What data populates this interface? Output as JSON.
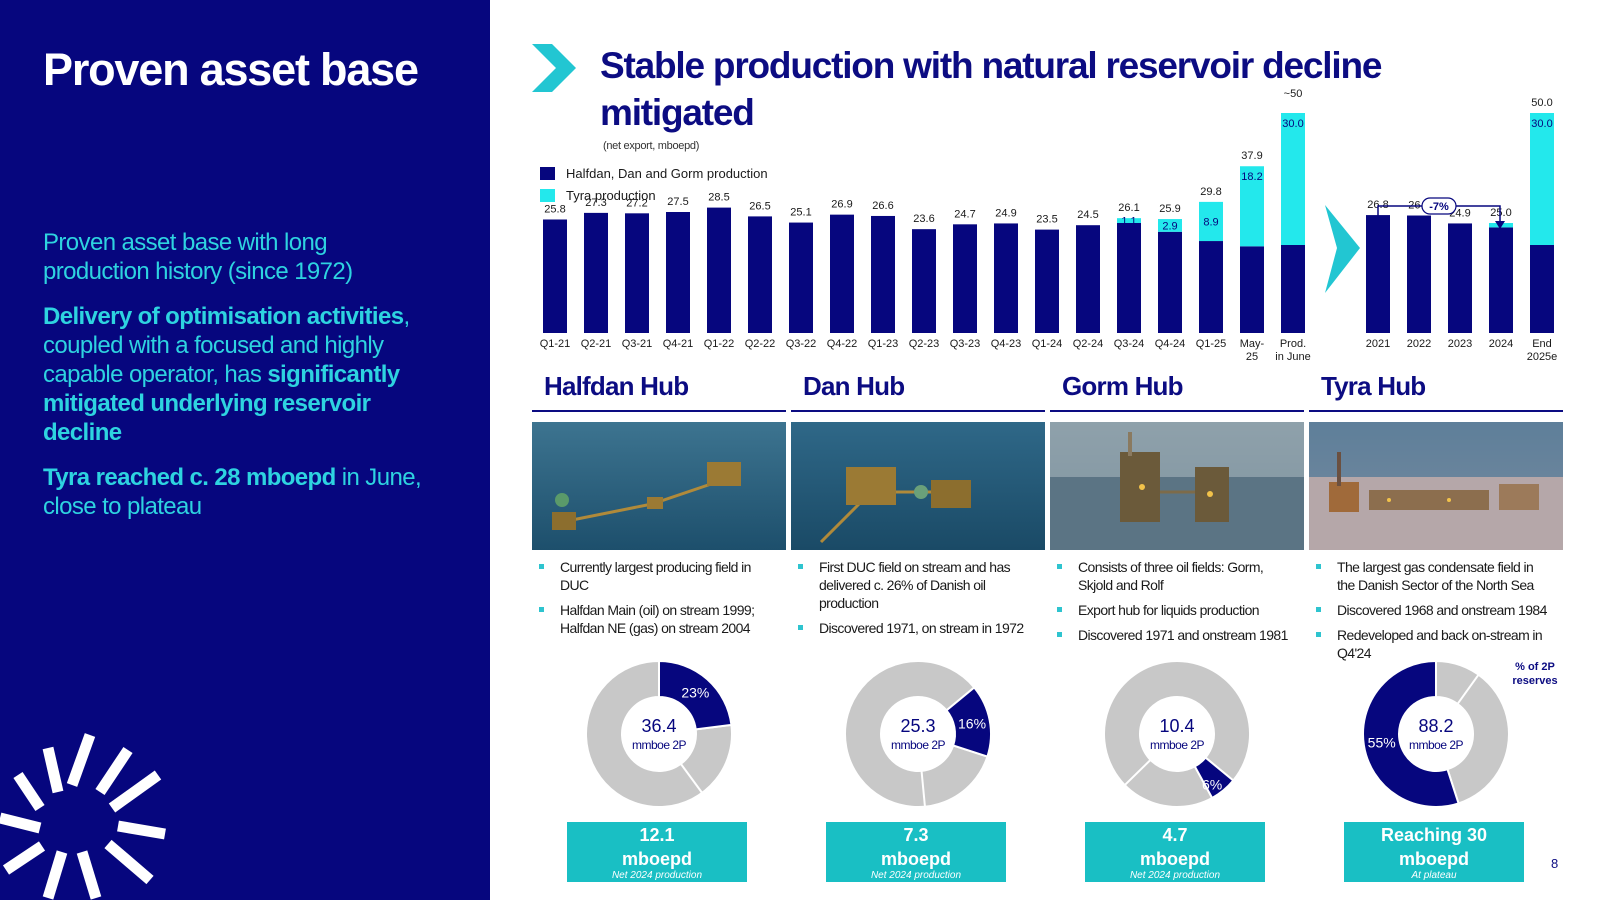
{
  "left": {
    "title": "Proven asset base",
    "p1": "Proven asset base with long production history (since 1972)",
    "p2_bold1": "Delivery of optimisation activities",
    "p2_text1": ", coupled with a focused and highly capable  operator, has ",
    "p2_bold2": "significantly mitigated underlying reservoir decline",
    "p3_bold": "Tyra reached c. 28 mboepd",
    "p3_text": " in June, close to plateau"
  },
  "header": {
    "title": "Stable production with natural reservoir decline mitigated",
    "subtitle": "(net export, mboepd)"
  },
  "colors": {
    "navy": "#06067e",
    "cyan": "#23e8ec",
    "teal": "#19bfc4",
    "grey": "#c8c8c8"
  },
  "chart_data": [
    {
      "type": "bar",
      "stacked": true,
      "legend_position": "top-left",
      "categories": [
        "Q1-21",
        "Q2-21",
        "Q3-21",
        "Q4-21",
        "Q1-22",
        "Q2-22",
        "Q3-22",
        "Q4-22",
        "Q1-23",
        "Q2-23",
        "Q3-23",
        "Q4-23",
        "Q1-24",
        "Q2-24",
        "Q3-24",
        "Q4-24",
        "Q1-25",
        "May-25",
        "Prod. in June"
      ],
      "series": [
        {
          "name": "Halfdan, Dan and Gorm production",
          "values": [
            25.8,
            27.3,
            27.2,
            27.5,
            28.5,
            26.5,
            25.1,
            26.9,
            26.6,
            23.6,
            24.7,
            24.9,
            23.5,
            24.5,
            25.0,
            23.0,
            20.9,
            19.7,
            20.0
          ]
        },
        {
          "name": "Tyra production",
          "values": [
            null,
            null,
            null,
            null,
            null,
            null,
            null,
            null,
            null,
            null,
            null,
            null,
            null,
            null,
            1.1,
            2.9,
            8.9,
            18.2,
            30.0
          ]
        }
      ],
      "tyra_labels": [
        "",
        "",
        "",
        "",
        "",
        "",
        "",
        "",
        "",
        "",
        "",
        "",
        "",
        "",
        "1.1",
        "2.9",
        "8.9",
        "18.2",
        "30.0"
      ],
      "total_labels": [
        "25.8",
        "27.3",
        "27.2",
        "27.5",
        "28.5",
        "26.5",
        "25.1",
        "26.9",
        "26.6",
        "23.6",
        "24.7",
        "24.9",
        "23.5",
        "24.5",
        "26.1",
        "25.9",
        "29.8",
        "37.9",
        "~50"
      ]
    },
    {
      "type": "bar",
      "stacked": true,
      "categories": [
        "2021",
        "2022",
        "2023",
        "2024",
        "End 2025e"
      ],
      "series": [
        {
          "name": "Halfdan, Dan and Gorm production",
          "values": [
            26.8,
            26.7,
            24.9,
            24.0,
            20.0
          ]
        },
        {
          "name": "Tyra production",
          "values": [
            null,
            null,
            null,
            1.0,
            30.0
          ]
        }
      ],
      "tyra_labels": [
        "",
        "",
        "",
        "",
        "30.0"
      ],
      "total_labels": [
        "26.8",
        "26.7",
        "24.9",
        "25.0",
        "50.0"
      ],
      "annotation": "-7%"
    }
  ],
  "hubs": [
    {
      "title": "Halfdan Hub",
      "bullets": [
        "Currently largest producing field in DUC",
        "Halfdan Main (oil) on stream 1999; Halfdan NE (gas) on stream 2004"
      ],
      "reserves": "36.4",
      "reserves_unit": "mmboe 2P",
      "share": 23,
      "share_label": "23%",
      "kpi_value": "12.1",
      "kpi_unit": "mboepd",
      "kpi_sub": "Net 2024 production"
    },
    {
      "title": "Dan Hub",
      "bullets": [
        "First DUC field on stream and has delivered c. 26% of Danish oil production",
        "Discovered 1971, on stream in 1972"
      ],
      "reserves": "25.3",
      "reserves_unit": "mmboe 2P",
      "share": 16,
      "share_label": "16%",
      "kpi_value": "7.3",
      "kpi_unit": "mboepd",
      "kpi_sub": "Net 2024 production"
    },
    {
      "title": "Gorm Hub",
      "bullets": [
        "Consists of three oil fields: Gorm, Skjold and Rolf",
        "Export hub for liquids production",
        "Discovered 1971 and onstream 1981"
      ],
      "reserves": "10.4",
      "reserves_unit": "mmboe 2P",
      "share": 6,
      "share_label": "6%",
      "kpi_value": "4.7",
      "kpi_unit": "mboepd",
      "kpi_sub": "Net 2024 production"
    },
    {
      "title": "Tyra Hub",
      "bullets": [
        "The largest gas condensate field in the Danish Sector of the North Sea",
        "Discovered 1968 and onstream 1984",
        "Redeveloped and back on-stream in Q4'24"
      ],
      "reserves": "88.2",
      "reserves_unit": "mmboe 2P",
      "share": 55,
      "share_label": "55%",
      "kpi_value": "Reaching 30",
      "kpi_unit": "mboepd",
      "kpi_sub": "At plateau"
    }
  ],
  "pct_label": "% of 2P reserves",
  "page_number": "8"
}
